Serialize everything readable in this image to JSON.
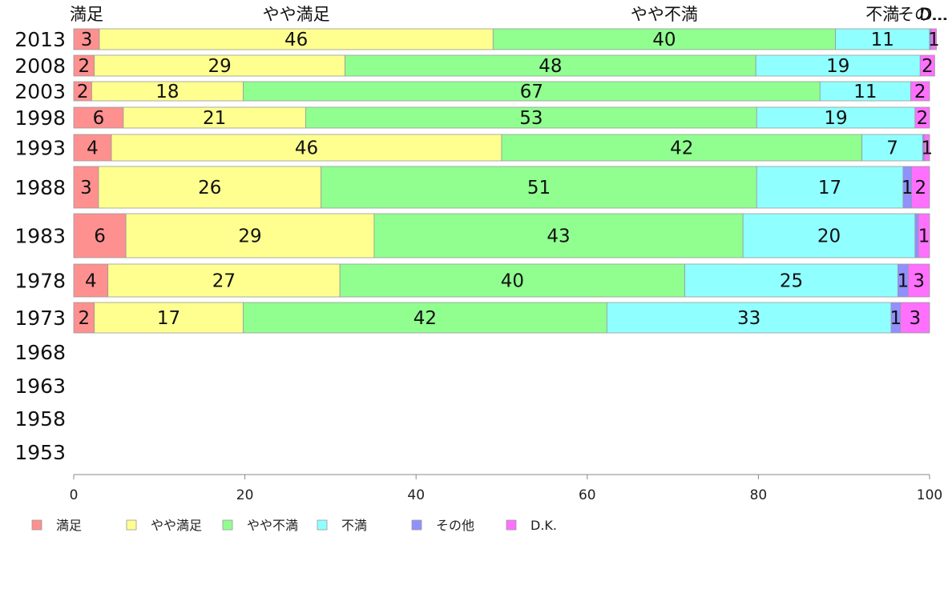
{
  "chart_data": {
    "type": "bar",
    "orientation": "horizontal",
    "stacked": true,
    "xlim": [
      0,
      100
    ],
    "xticks": [
      0,
      20,
      40,
      60,
      80,
      100
    ],
    "grid": false,
    "legend_position": "bottom",
    "series_colors": [
      "#ff9090",
      "#ffff90",
      "#90ff90",
      "#90ffff",
      "#9090ff",
      "#ff70ff"
    ],
    "series": [
      {
        "name": "満足",
        "top_label": "満足"
      },
      {
        "name": "やや満足",
        "top_label": "やや満足"
      },
      {
        "name": "やや不満",
        "top_label": "やや不満"
      },
      {
        "name": "不満",
        "top_label": "不満"
      },
      {
        "name": "その他",
        "top_label": "その..."
      },
      {
        "name": "D.K.",
        "top_label": "D..."
      }
    ],
    "categories": [
      "2013",
      "2008",
      "2003",
      "1998",
      "1993",
      "1988",
      "1983",
      "1978",
      "1973",
      "1968",
      "1963",
      "1958",
      "1953"
    ],
    "rows": [
      {
        "year": "2013",
        "values": [
          3,
          46,
          40,
          11,
          0.2,
          0.6
        ],
        "labels": [
          "3",
          "46",
          "40",
          "11",
          "",
          "1"
        ]
      },
      {
        "year": "2008",
        "values": [
          2.4,
          29.3,
          48,
          19.2,
          0,
          1.7
        ],
        "labels": [
          "2",
          "29",
          "48",
          "19",
          "",
          "2"
        ]
      },
      {
        "year": "2003",
        "values": [
          2.1,
          17.7,
          67.4,
          10.6,
          0,
          2.2
        ],
        "labels": [
          "2",
          "18",
          "67",
          "11",
          "",
          "2"
        ]
      },
      {
        "year": "1998",
        "values": [
          5.8,
          21.3,
          52.7,
          18.5,
          0,
          1.7
        ],
        "labels": [
          "6",
          "21",
          "53",
          "19",
          "",
          "2"
        ]
      },
      {
        "year": "1993",
        "values": [
          4.4,
          45.6,
          42.1,
          7.1,
          0.2,
          0.6
        ],
        "labels": [
          "4",
          "46",
          "42",
          "7",
          "",
          "1"
        ]
      },
      {
        "year": "1988",
        "values": [
          2.9,
          26,
          50.9,
          17.1,
          1,
          2.1
        ],
        "labels": [
          "3",
          "26",
          "51",
          "17",
          "1",
          "2"
        ]
      },
      {
        "year": "1983",
        "values": [
          6.1,
          29,
          43.1,
          20.1,
          0.4,
          1.3
        ],
        "labels": [
          "6",
          "29",
          "43",
          "20",
          "",
          "1"
        ]
      },
      {
        "year": "1978",
        "values": [
          4,
          27.1,
          40.3,
          24.9,
          1.2,
          2.5
        ],
        "labels": [
          "4",
          "27",
          "40",
          "25",
          "1",
          "3"
        ]
      },
      {
        "year": "1973",
        "values": [
          2.4,
          17.4,
          42.5,
          33.2,
          1.1,
          3.4
        ],
        "labels": [
          "2",
          "17",
          "42",
          "33",
          "1",
          "3"
        ]
      },
      {
        "year": "1968",
        "values": [],
        "labels": []
      },
      {
        "year": "1963",
        "values": [],
        "labels": []
      },
      {
        "year": "1958",
        "values": [],
        "labels": []
      },
      {
        "year": "1953",
        "values": [],
        "labels": []
      }
    ]
  }
}
